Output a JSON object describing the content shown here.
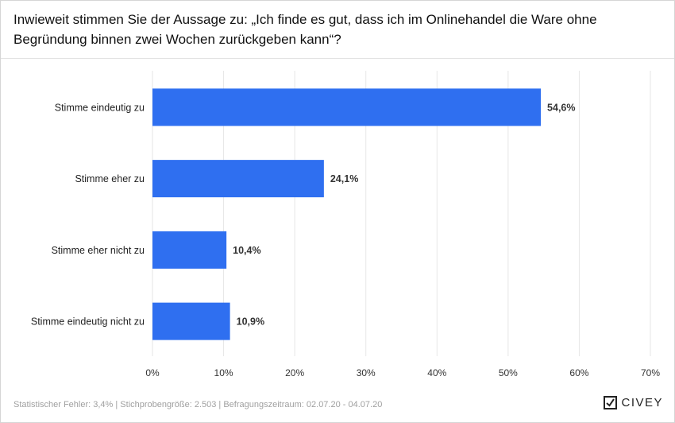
{
  "title": "Inwieweit stimmen Sie der Aussage zu: „Ich finde es gut, dass ich im Onlinehandel die Ware ohne Begründung binnen zwei Wochen zurückgeben kann“?",
  "footer": {
    "note": "Statistischer Fehler: 3,4% | Stichprobengröße: 2.503 | Befragungszeitraum: 02.07.20 - 04.07.20",
    "logo": "CIVEY",
    "logo_icon": "civey-logo-icon"
  },
  "colors": {
    "bar": "#2f6ff0",
    "grid": "#e6e6e6"
  },
  "chart_data": {
    "type": "bar",
    "orientation": "horizontal",
    "title": "Inwieweit stimmen Sie der Aussage zu: „Ich finde es gut, dass ich im Onlinehandel die Ware ohne Begründung binnen zwei Wochen zurückgeben kann“?",
    "categories": [
      "Stimme eindeutig zu",
      "Stimme eher zu",
      "Stimme eher nicht zu",
      "Stimme eindeutig nicht zu"
    ],
    "values": [
      54.6,
      24.1,
      10.4,
      10.9
    ],
    "value_labels": [
      "54,6%",
      "24,1%",
      "10,4%",
      "10,9%"
    ],
    "xlim": [
      0,
      70
    ],
    "xticks": [
      0,
      10,
      20,
      30,
      40,
      50,
      60,
      70
    ],
    "xtick_labels": [
      "0%",
      "10%",
      "20%",
      "30%",
      "40%",
      "50%",
      "60%",
      "70%"
    ],
    "grid": true,
    "xlabel": "",
    "ylabel": ""
  }
}
